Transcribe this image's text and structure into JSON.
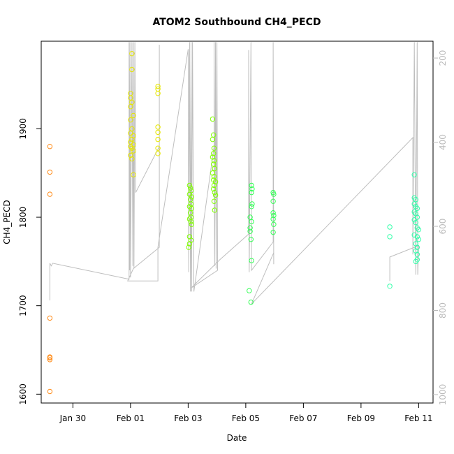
{
  "chart_data": {
    "type": "scatter",
    "title": "ATOM2 Southbound CH4_PECD",
    "xlabel": "Date",
    "ylabel": "CH4_PECD",
    "x_ticks": [
      "Jan 30",
      "Feb 01",
      "Feb 03",
      "Feb 05",
      "Feb 07",
      "Feb 09",
      "Feb 11"
    ],
    "x_tick_days": [
      30,
      32,
      34,
      36,
      38,
      40,
      42
    ],
    "xlim_days": [
      28.9,
      42.5
    ],
    "y_ticks": [
      1600,
      1700,
      1800,
      1900
    ],
    "ylim": [
      1590,
      1999
    ],
    "y2_ticks": [
      200,
      400,
      600,
      800,
      1000
    ],
    "y2lim": [
      1020,
      160
    ],
    "line_color": "#bebebe",
    "grid": false,
    "series": [
      {
        "color": "#ff8c1a",
        "points": [
          [
            29.2,
            1880
          ],
          [
            29.2,
            1851
          ],
          [
            29.2,
            1826
          ],
          [
            29.2,
            1686
          ],
          [
            29.2,
            1642
          ],
          [
            29.2,
            1641
          ],
          [
            29.2,
            1639
          ],
          [
            29.2,
            1603
          ]
        ]
      },
      {
        "color": "#e6e600",
        "points": [
          [
            32.05,
            1985
          ],
          [
            32.05,
            1967
          ],
          [
            32.0,
            1940
          ],
          [
            32.0,
            1935
          ],
          [
            32.05,
            1930
          ],
          [
            32.0,
            1925
          ],
          [
            32.1,
            1915
          ],
          [
            32.0,
            1910
          ],
          [
            32.05,
            1900
          ],
          [
            32.0,
            1895
          ],
          [
            32.1,
            1892
          ],
          [
            32.05,
            1888
          ],
          [
            32.0,
            1885
          ],
          [
            32.1,
            1882
          ],
          [
            32.0,
            1880
          ],
          [
            32.05,
            1878
          ],
          [
            32.1,
            1875
          ],
          [
            32.0,
            1870
          ],
          [
            32.05,
            1866
          ],
          [
            32.1,
            1848
          ],
          [
            32.95,
            1948
          ],
          [
            32.95,
            1945
          ],
          [
            32.95,
            1940
          ],
          [
            32.95,
            1902
          ],
          [
            32.95,
            1896
          ],
          [
            32.95,
            1888
          ],
          [
            32.95,
            1878
          ],
          [
            32.95,
            1872
          ]
        ]
      },
      {
        "color": "#80ff00",
        "points": [
          [
            34.05,
            1836
          ],
          [
            34.08,
            1833
          ],
          [
            34.1,
            1830
          ],
          [
            34.05,
            1826
          ],
          [
            34.12,
            1823
          ],
          [
            34.08,
            1820
          ],
          [
            34.1,
            1815
          ],
          [
            34.05,
            1812
          ],
          [
            34.12,
            1810
          ],
          [
            34.08,
            1805
          ],
          [
            34.1,
            1800
          ],
          [
            34.05,
            1798
          ],
          [
            34.1,
            1795
          ],
          [
            34.12,
            1792
          ],
          [
            34.05,
            1778
          ],
          [
            34.1,
            1774
          ],
          [
            34.05,
            1770
          ],
          [
            34.02,
            1766
          ],
          [
            34.85,
            1911
          ],
          [
            34.88,
            1893
          ],
          [
            34.85,
            1888
          ],
          [
            34.9,
            1878
          ],
          [
            34.88,
            1872
          ],
          [
            34.85,
            1868
          ],
          [
            34.9,
            1864
          ],
          [
            34.88,
            1860
          ],
          [
            34.92,
            1855
          ],
          [
            34.85,
            1850
          ],
          [
            34.9,
            1846
          ],
          [
            34.88,
            1842
          ],
          [
            34.95,
            1840
          ],
          [
            34.9,
            1836
          ],
          [
            34.88,
            1832
          ],
          [
            34.92,
            1828
          ],
          [
            34.95,
            1825
          ],
          [
            34.9,
            1818
          ],
          [
            34.92,
            1808
          ]
        ]
      },
      {
        "color": "#33ff55",
        "points": [
          [
            36.2,
            1836
          ],
          [
            36.22,
            1832
          ],
          [
            36.2,
            1828
          ],
          [
            36.22,
            1815
          ],
          [
            36.2,
            1812
          ],
          [
            36.15,
            1800
          ],
          [
            36.2,
            1795
          ],
          [
            36.15,
            1788
          ],
          [
            36.15,
            1784
          ],
          [
            36.18,
            1775
          ],
          [
            36.2,
            1751
          ],
          [
            36.12,
            1717
          ],
          [
            36.18,
            1704
          ],
          [
            36.95,
            1828
          ],
          [
            36.97,
            1826
          ],
          [
            36.95,
            1818
          ],
          [
            36.95,
            1805
          ],
          [
            36.97,
            1802
          ],
          [
            36.95,
            1798
          ],
          [
            36.97,
            1792
          ],
          [
            36.95,
            1783
          ]
        ]
      },
      {
        "color": "#33ffaa",
        "points": [
          [
            41.0,
            1789
          ],
          [
            41.0,
            1778
          ],
          [
            41.0,
            1722
          ],
          [
            41.85,
            1848
          ],
          [
            41.85,
            1822
          ],
          [
            41.9,
            1820
          ],
          [
            41.85,
            1815
          ],
          [
            41.9,
            1812
          ],
          [
            41.95,
            1810
          ],
          [
            41.85,
            1806
          ],
          [
            41.9,
            1804
          ],
          [
            41.95,
            1800
          ],
          [
            41.85,
            1797
          ],
          [
            41.9,
            1794
          ],
          [
            41.95,
            1788
          ],
          [
            42.0,
            1786
          ],
          [
            41.85,
            1780
          ],
          [
            41.95,
            1778
          ],
          [
            42.0,
            1775
          ],
          [
            41.9,
            1770
          ],
          [
            41.95,
            1766
          ],
          [
            41.9,
            1762
          ],
          [
            41.95,
            1758
          ],
          [
            41.9,
            1750
          ],
          [
            41.95,
            1752
          ]
        ]
      }
    ],
    "line_path": [
      [
        29.2,
        1706
      ],
      [
        29.2,
        1748
      ],
      [
        29.25,
        1745
      ],
      [
        29.3,
        1748
      ],
      [
        31.95,
        1730
      ],
      [
        31.95,
        1998
      ],
      [
        31.97,
        1740
      ],
      [
        31.98,
        1998
      ],
      [
        32.0,
        1732
      ],
      [
        32.05,
        1998
      ],
      [
        32.08,
        1745
      ],
      [
        32.1,
        1998
      ],
      [
        32.12,
        1742
      ],
      [
        32.15,
        1998
      ],
      [
        32.18,
        1828
      ],
      [
        33.0,
        1880
      ],
      [
        33.0,
        1995
      ],
      [
        33.0,
        1766
      ],
      [
        32.1,
        1742
      ],
      [
        31.9,
        1728
      ],
      [
        32.95,
        1728
      ],
      [
        32.95,
        1766
      ],
      [
        34.0,
        1990
      ],
      [
        34.02,
        1738
      ],
      [
        34.05,
        1998
      ],
      [
        34.08,
        1716
      ],
      [
        34.1,
        1998
      ],
      [
        34.12,
        1716
      ],
      [
        34.15,
        1998
      ],
      [
        34.2,
        1716
      ],
      [
        34.9,
        1880
      ],
      [
        34.9,
        1998
      ],
      [
        34.92,
        1745
      ],
      [
        34.95,
        1998
      ],
      [
        34.97,
        1742
      ],
      [
        35.0,
        1998
      ],
      [
        35.02,
        1740
      ],
      [
        34.1,
        1720
      ],
      [
        35.1,
        1752
      ],
      [
        36.1,
        1781
      ],
      [
        36.1,
        1989
      ],
      [
        36.12,
        1738
      ],
      [
        36.18,
        1998
      ],
      [
        36.2,
        1740
      ],
      [
        36.95,
        1772
      ],
      [
        36.95,
        1998
      ],
      [
        36.97,
        1747
      ],
      [
        36.97,
        1760
      ],
      [
        36.2,
        1702
      ],
      [
        41.8,
        1890
      ],
      [
        41.8,
        1758
      ],
      [
        41.85,
        1998
      ],
      [
        41.9,
        1735
      ],
      [
        41.95,
        1998
      ],
      [
        41.97,
        1735
      ],
      [
        42.0,
        1768
      ],
      [
        41.0,
        1755
      ],
      [
        41.0,
        1728
      ]
    ]
  }
}
